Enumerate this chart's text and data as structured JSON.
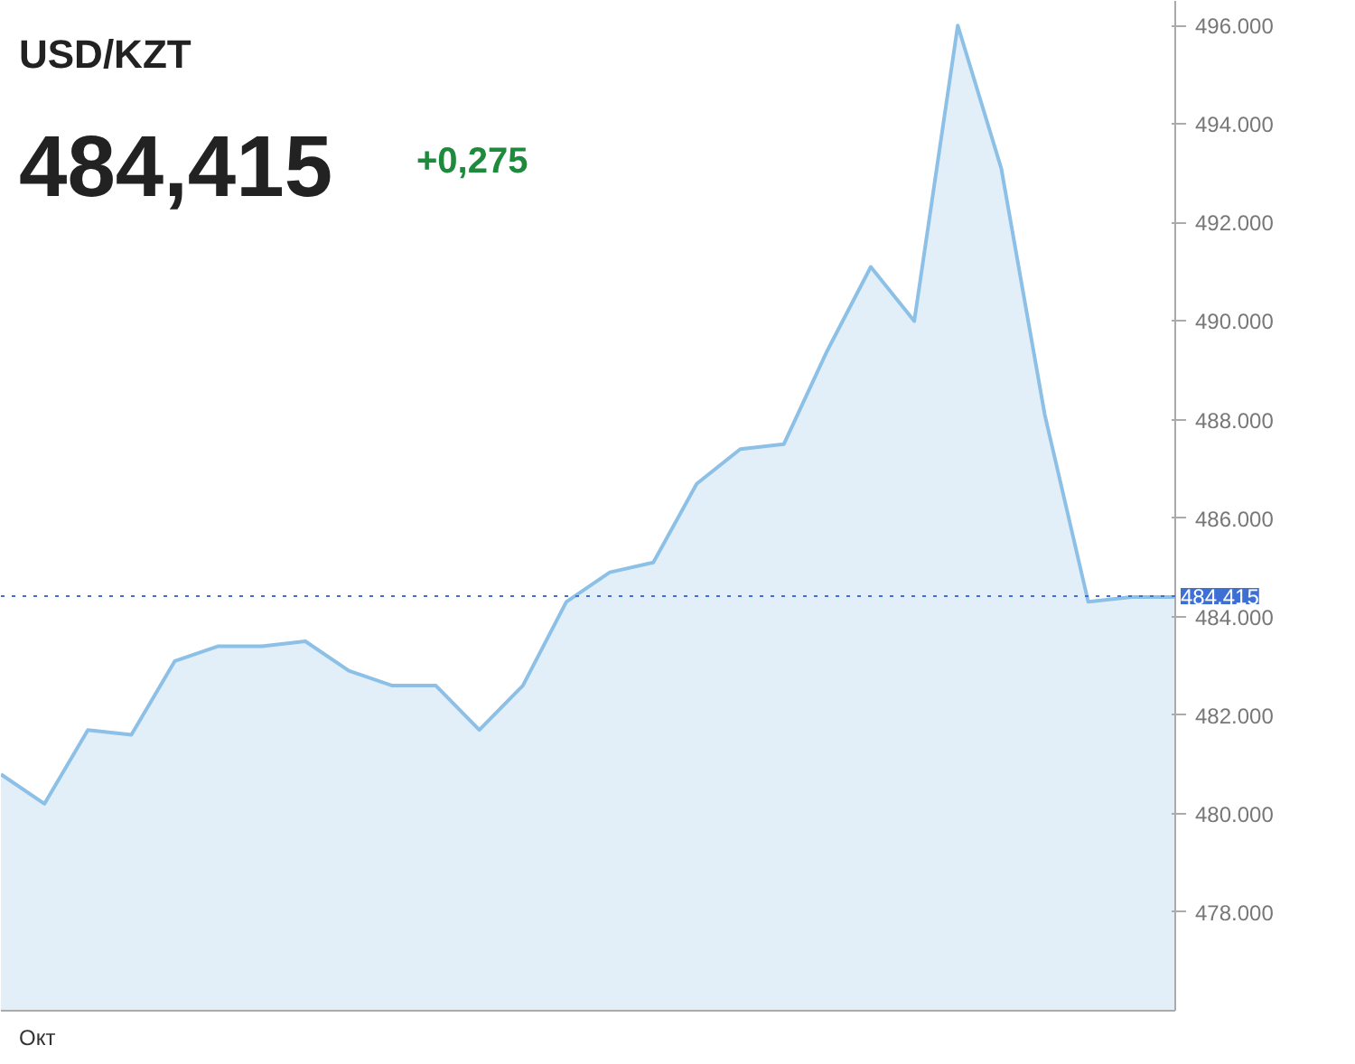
{
  "chart_data": {
    "type": "area",
    "title": "USD/KZT",
    "subtitle": "484,415",
    "annotations": [
      "+0,275",
      "Окт"
    ],
    "categories": [
      null,
      null,
      null,
      null,
      null,
      null,
      null,
      null,
      null,
      null,
      null,
      null,
      null,
      null,
      null,
      null,
      null,
      null,
      null,
      null,
      null,
      null,
      null,
      null,
      null,
      null,
      null,
      null
    ],
    "series": [
      {
        "color": "#8dc0e6",
        "values": [
          480.8,
          480.2,
          481.7,
          481.6,
          483.1,
          483.4,
          483.4,
          483.5,
          482.9,
          482.6,
          482.6,
          481.7,
          482.6,
          484.3,
          484.9,
          485.1,
          486.7,
          487.4,
          487.5,
          489.4,
          491.1,
          490.0,
          496.0,
          493.1,
          488.1,
          484.3,
          484.4,
          484.4
        ]
      }
    ],
    "ylim": [
      476,
      496.5
    ],
    "yticks": [
      {
        "value": 478,
        "label": "478.000"
      },
      {
        "value": 480,
        "label": "480.000"
      },
      {
        "value": 482,
        "label": "482.000"
      },
      {
        "value": 484,
        "label": "484.000"
      },
      {
        "value": 486,
        "label": "486.000"
      },
      {
        "value": 488,
        "label": "488.000"
      },
      {
        "value": 490,
        "label": "490.000"
      },
      {
        "value": 492,
        "label": "492.000"
      },
      {
        "value": 494,
        "label": "494.000"
      },
      {
        "value": 496,
        "label": "496.000"
      }
    ],
    "ref_lines": [
      {
        "axis": "y",
        "value": 484.415,
        "label": "484.415",
        "color": "#3d6fd4",
        "line_style": "dotted"
      }
    ],
    "grid": false
  }
}
